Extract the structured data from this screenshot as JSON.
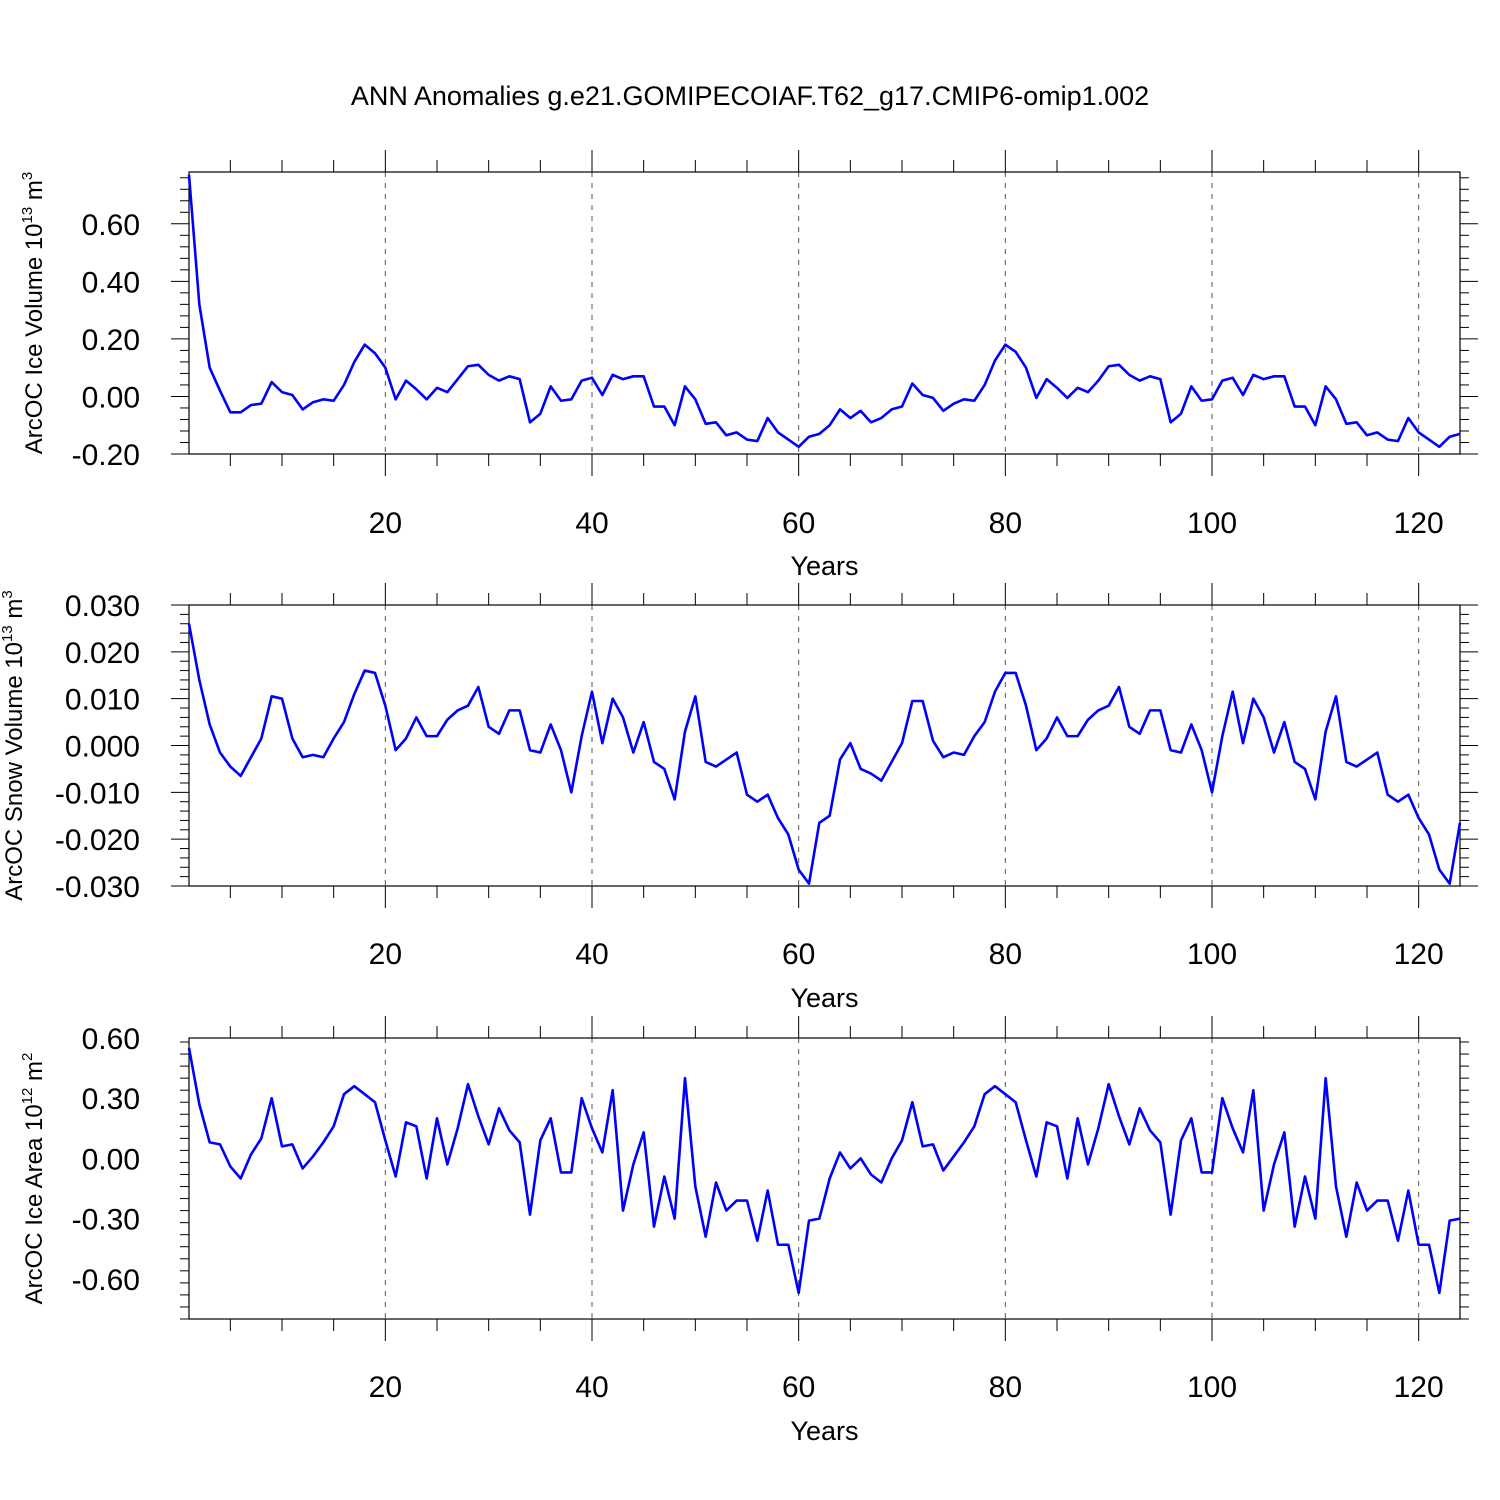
{
  "chart_data": {
    "title": "ANN Anomalies g.e21.GOMIPECOIAF.T62_g17.CMIP6-omip1.002",
    "line_color": "#0000ff",
    "panels": [
      {
        "type": "line",
        "ylabel": {
          "prefix": "ArcOC Ice Volume 10",
          "exp": "13",
          "unit": " m",
          "unit_exp": "3"
        },
        "xlabel": "Years",
        "xlim": [
          1,
          124
        ],
        "ylim": [
          -0.2,
          0.78
        ],
        "yticks": [
          -0.2,
          0.0,
          0.2,
          0.4,
          0.6
        ],
        "ytick_labels": [
          "-0.20",
          "0.00",
          "0.20",
          "0.40",
          "0.60"
        ],
        "xticks": [
          20,
          40,
          60,
          80,
          100,
          120
        ],
        "xtick_labels": [
          "20",
          "40",
          "60",
          "80",
          "100",
          "120"
        ],
        "x_start": 1,
        "values": [
          0.77,
          0.32,
          0.1,
          0.02,
          -0.055,
          -0.055,
          -0.03,
          -0.025,
          0.05,
          0.015,
          0.005,
          -0.045,
          -0.02,
          -0.01,
          -0.015,
          0.04,
          0.12,
          0.18,
          0.15,
          0.1,
          -0.01,
          0.055,
          0.025,
          -0.01,
          0.03,
          0.015,
          0.06,
          0.105,
          0.11,
          0.075,
          0.055,
          0.07,
          0.06,
          -0.09,
          -0.06,
          0.035,
          -0.015,
          -0.01,
          0.055,
          0.065,
          0.005,
          0.075,
          0.06,
          0.07,
          0.07,
          -0.035,
          -0.035,
          -0.1,
          0.035,
          -0.01,
          -0.095,
          -0.09,
          -0.135,
          -0.125,
          -0.15,
          -0.155,
          -0.075,
          -0.125,
          -0.15,
          -0.175,
          -0.14,
          -0.13,
          -0.1,
          -0.045,
          -0.075,
          -0.05,
          -0.09,
          -0.075,
          -0.045,
          -0.035,
          0.045,
          0.005,
          -0.005,
          -0.05,
          -0.025,
          -0.01,
          -0.015,
          0.04,
          0.125,
          0.18,
          0.155,
          0.1,
          -0.005,
          0.06,
          0.03,
          -0.005,
          0.03,
          0.015,
          0.055,
          0.105,
          0.11,
          0.075,
          0.055,
          0.07,
          0.06,
          -0.09,
          -0.06,
          0.035,
          -0.015,
          -0.01,
          0.055,
          0.065,
          0.005,
          0.075,
          0.06,
          0.07,
          0.07,
          -0.035,
          -0.035,
          -0.1,
          0.035,
          -0.01,
          -0.095,
          -0.09,
          -0.135,
          -0.125,
          -0.15,
          -0.155,
          -0.075,
          -0.125,
          -0.15,
          -0.175,
          -0.14,
          -0.13
        ]
      },
      {
        "type": "line",
        "ylabel": {
          "prefix": "ArcOC Snow Volume 10",
          "exp": "13",
          "unit": " m",
          "unit_exp": "3"
        },
        "xlabel": "Years",
        "xlim": [
          1,
          124
        ],
        "ylim": [
          -0.03,
          0.03
        ],
        "yticks": [
          -0.03,
          -0.02,
          -0.01,
          0.0,
          0.01,
          0.02,
          0.03
        ],
        "ytick_labels": [
          "-0.030",
          "-0.020",
          "-0.010",
          "0.000",
          "0.010",
          "0.020",
          "0.030"
        ],
        "xticks": [
          20,
          40,
          60,
          80,
          100,
          120
        ],
        "xtick_labels": [
          "20",
          "40",
          "60",
          "80",
          "100",
          "120"
        ],
        "x_start": 1,
        "values": [
          0.026,
          0.014,
          0.0045,
          -0.0015,
          -0.0045,
          -0.0065,
          -0.0025,
          0.0015,
          0.0105,
          0.01,
          0.0015,
          -0.0025,
          -0.002,
          -0.0025,
          0.0015,
          0.005,
          0.011,
          0.016,
          0.0155,
          0.0085,
          -0.001,
          0.0015,
          0.006,
          0.002,
          0.002,
          0.0055,
          0.0075,
          0.0085,
          0.0125,
          0.004,
          0.0025,
          0.0075,
          0.0075,
          -0.001,
          -0.0015,
          0.0045,
          -0.001,
          -0.01,
          0.002,
          0.0115,
          0.0005,
          0.01,
          0.006,
          -0.0015,
          0.005,
          -0.0035,
          -0.005,
          -0.0115,
          0.003,
          0.0105,
          -0.0035,
          -0.0045,
          -0.003,
          -0.0015,
          -0.0105,
          -0.012,
          -0.0105,
          -0.0155,
          -0.019,
          -0.0265,
          -0.0295,
          -0.0165,
          -0.015,
          -0.003,
          0.0005,
          -0.005,
          -0.006,
          -0.0075,
          -0.0035,
          0.0005,
          0.0095,
          0.0095,
          0.001,
          -0.0025,
          -0.0015,
          -0.002,
          0.002,
          0.005,
          0.0115,
          0.0155,
          0.0155,
          0.0085,
          -0.001,
          0.0015,
          0.006,
          0.002,
          0.002,
          0.0055,
          0.0075,
          0.0085,
          0.0125,
          0.004,
          0.0025,
          0.0075,
          0.0075,
          -0.001,
          -0.0015,
          0.0045,
          -0.001,
          -0.01,
          0.002,
          0.0115,
          0.0005,
          0.01,
          0.006,
          -0.0015,
          0.005,
          -0.0035,
          -0.005,
          -0.0115,
          0.003,
          0.0105,
          -0.0035,
          -0.0045,
          -0.003,
          -0.0015,
          -0.0105,
          -0.012,
          -0.0105,
          -0.0155,
          -0.019,
          -0.0265,
          -0.0295,
          -0.0165
        ]
      },
      {
        "type": "line",
        "ylabel": {
          "prefix": "ArcOC Ice Area 10",
          "exp": "12",
          "unit": " m",
          "unit_exp": "2"
        },
        "xlabel": "Years",
        "xlim": [
          1,
          124
        ],
        "ylim": [
          -0.8,
          0.6
        ],
        "yticks": [
          -0.6,
          -0.3,
          0.0,
          0.3,
          0.6
        ],
        "ytick_labels": [
          "-0.60",
          "-0.30",
          "0.00",
          "0.30",
          "0.60"
        ],
        "xticks": [
          20,
          40,
          60,
          80,
          100,
          120
        ],
        "xtick_labels": [
          "20",
          "40",
          "60",
          "80",
          "100",
          "120"
        ],
        "x_start": 1,
        "values": [
          0.55,
          0.27,
          0.08,
          0.07,
          -0.04,
          -0.1,
          0.02,
          0.1,
          0.3,
          0.06,
          0.07,
          -0.05,
          0.01,
          0.08,
          0.16,
          0.32,
          0.36,
          0.32,
          0.28,
          0.09,
          -0.09,
          0.18,
          0.16,
          -0.1,
          0.2,
          -0.03,
          0.15,
          0.37,
          0.21,
          0.07,
          0.25,
          0.14,
          0.08,
          -0.28,
          0.09,
          0.2,
          -0.07,
          -0.07,
          0.3,
          0.15,
          0.03,
          0.34,
          -0.26,
          -0.03,
          0.13,
          -0.34,
          -0.09,
          -0.3,
          0.4,
          -0.14,
          -0.39,
          -0.12,
          -0.26,
          -0.21,
          -0.21,
          -0.41,
          -0.16,
          -0.43,
          -0.43,
          -0.67,
          -0.31,
          -0.3,
          -0.1,
          0.03,
          -0.05,
          0.0,
          -0.08,
          -0.12,
          0.0,
          0.09,
          0.28,
          0.06,
          0.07,
          -0.06,
          0.01,
          0.08,
          0.16,
          0.32,
          0.36,
          0.32,
          0.28,
          0.09,
          -0.09,
          0.18,
          0.16,
          -0.1,
          0.2,
          -0.03,
          0.15,
          0.37,
          0.21,
          0.07,
          0.25,
          0.14,
          0.08,
          -0.28,
          0.09,
          0.2,
          -0.07,
          -0.07,
          0.3,
          0.15,
          0.03,
          0.34,
          -0.26,
          -0.03,
          0.13,
          -0.34,
          -0.09,
          -0.3,
          0.4,
          -0.14,
          -0.39,
          -0.12,
          -0.26,
          -0.21,
          -0.21,
          -0.41,
          -0.16,
          -0.43,
          -0.43,
          -0.67,
          -0.31,
          -0.3
        ]
      }
    ]
  }
}
